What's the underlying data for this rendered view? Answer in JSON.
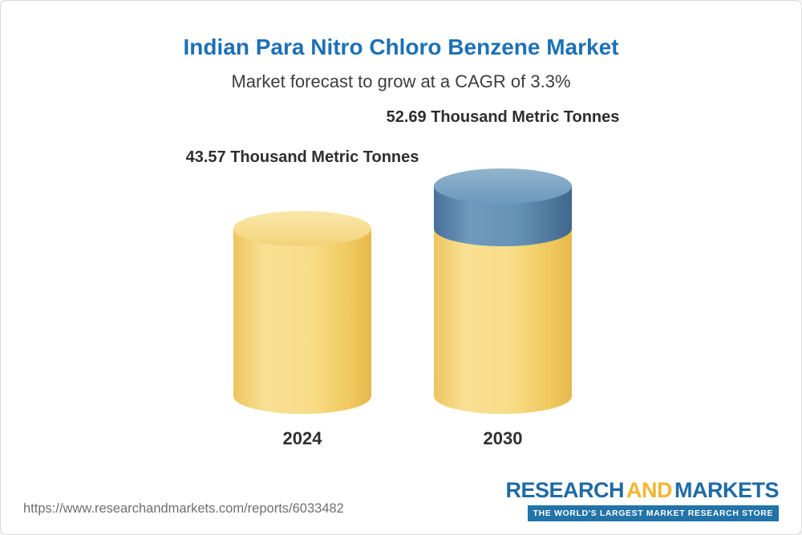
{
  "page": {
    "title": "Indian Para Nitro Chloro Benzene Market",
    "subtitle": "Market forecast to grow at a CAGR of 3.3%"
  },
  "chart_data": {
    "type": "bar",
    "bar_style": "3d-cylinder",
    "title": "Indian Para Nitro Chloro Benzene Market",
    "subtitle": "Market forecast to grow at a CAGR of 3.3%",
    "cagr_percent": 3.3,
    "categories": [
      "2024",
      "2030"
    ],
    "values": [
      43.57,
      52.69
    ],
    "unit": "Thousand Metric Tonnes",
    "value_labels": [
      "43.57 Thousand Metric Tonnes",
      "52.69 Thousand Metric Tonnes"
    ],
    "ylim": [
      0,
      55
    ],
    "grid": false,
    "legend": false,
    "colors": {
      "title_text": "#1d70b6",
      "bar_base": "#f6d87c",
      "bar_growth": "#5e8cb0"
    }
  },
  "footer": {
    "url": "https://www.researchandmarkets.com/reports/6033482",
    "logo": {
      "word1": "RESEARCH",
      "word2": "AND",
      "word3": "MARKETS",
      "tagline": "THE WORLD'S LARGEST MARKET RESEARCH STORE"
    }
  }
}
